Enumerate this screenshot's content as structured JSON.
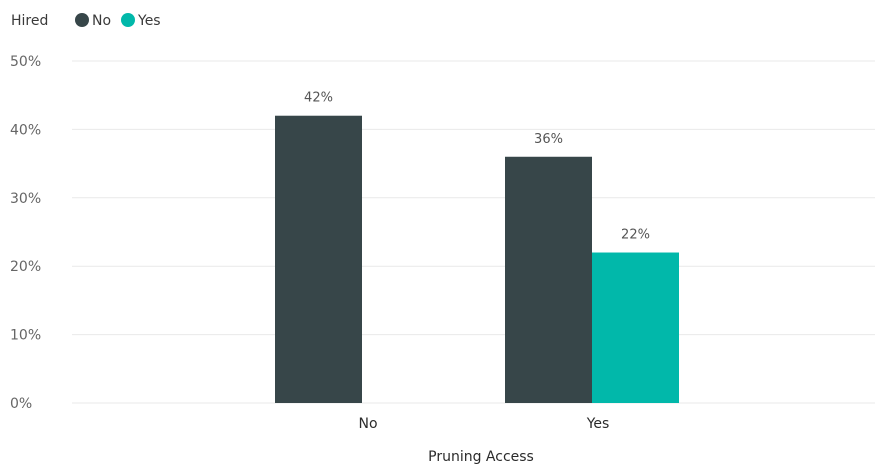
{
  "chart_data": {
    "type": "bar",
    "title": "",
    "xlabel": "Pruning Access",
    "ylabel": "",
    "categories": [
      "No",
      "Yes"
    ],
    "series": [
      {
        "name": "No",
        "color": "#374649",
        "values": [
          42,
          36
        ],
        "labels": [
          "42%",
          "36%"
        ]
      },
      {
        "name": "Yes",
        "color": "#01B8AA",
        "values": [
          null,
          22
        ],
        "labels": [
          "",
          "22%"
        ]
      }
    ],
    "ylim": [
      0,
      50
    ],
    "yticks": [
      0,
      10,
      20,
      30,
      40,
      50
    ],
    "ytick_labels": [
      "0%",
      "10%",
      "20%",
      "30%",
      "40%",
      "50%"
    ],
    "grid": true,
    "legend": {
      "title": "Hired",
      "placement": "top-left"
    }
  }
}
